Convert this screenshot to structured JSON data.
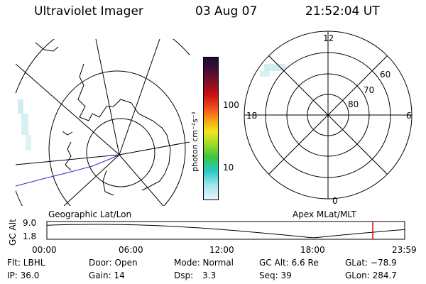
{
  "header": {
    "instrument": "Ultraviolet Imager",
    "date": "03 Aug 07",
    "time": "21:52:04 UT"
  },
  "colorbar": {
    "unit_label": "photon cm⁻²s⁻¹",
    "ticks": [
      "100",
      "10"
    ]
  },
  "polar_plot": {
    "mlt_labels": [
      "12",
      "18",
      "6",
      "0"
    ],
    "lat_labels": [
      "60",
      "70",
      "80"
    ]
  },
  "panel_labels": {
    "geographic": "Geographic Lat/Lon",
    "apex": "Apex MLat/MLT"
  },
  "altitude_plot": {
    "axis_label": "GC Alt",
    "y_ticks": [
      "9.0",
      "1.8"
    ],
    "x_ticks": [
      "00:00",
      "06:00",
      "12:00",
      "18:00",
      "23:59"
    ],
    "current_time_fraction": 0.9109,
    "curve_color": "#000000",
    "marker_color": "#e00000"
  },
  "status": {
    "flt": "Flt: LBHL",
    "door": "Door: Open",
    "mode": "Mode: Normal",
    "gc_alt": "GC Alt: 6.6 Re",
    "glat": "GLat: −78.9",
    "ip": "IP: 36.0",
    "gain": "Gain: 14",
    "dsp_label": "Dsp:",
    "dsp_value": "3.3",
    "seq": "Seq: 39",
    "glon": "GLon: 284.7"
  }
}
